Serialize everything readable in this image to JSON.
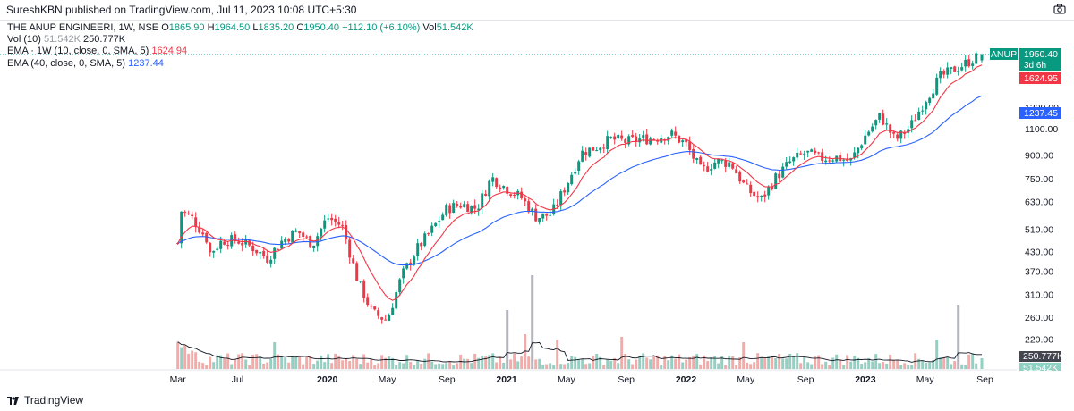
{
  "published": "SureshKBN published on TradingView.com, Jul 11, 2023 10:08 UTC+5:30",
  "legend": {
    "symbol": "THE ANUP ENGINEERI, 1W, NSE",
    "ohlc": [
      {
        "k": "O",
        "v": "1865.90"
      },
      {
        "k": "H",
        "v": "1964.50"
      },
      {
        "k": "L",
        "v": "1835.20"
      },
      {
        "k": "C",
        "v": "1950.40"
      }
    ],
    "change": "+112.10 (+6.10%)",
    "vol_key": "Vol",
    "vol_value": "51.542K",
    "vol_ind_label": "Vol (10)",
    "vol_ind_v1": "51.542K",
    "vol_ind_v2": "250.777K",
    "ema1_label": "EMA · 1W (10, close, 0, SMA, 5)",
    "ema1_value": "1624.94",
    "ema2_label": "EMA (40, close, 0, SMA, 5)",
    "ema2_value": "1237.44"
  },
  "price_axis": {
    "ticks": [
      "1950.00",
      "1300.00",
      "1100.00",
      "900.00",
      "750.00",
      "630.00",
      "510.00",
      "430.00",
      "370.00",
      "310.00",
      "260.00",
      "220.00"
    ]
  },
  "time_axis": {
    "ticks": [
      "Mar",
      "Jul",
      "2020",
      "May",
      "Sep",
      "2021",
      "May",
      "Sep",
      "2022",
      "May",
      "Sep",
      "2023",
      "May",
      "Sep"
    ]
  },
  "badges": {
    "symbol": "ANUP",
    "price": "1950.40",
    "countdown": "3d 6h",
    "ema10": "1624.95",
    "ema40": "1237.45",
    "vol_ma": "250.777K",
    "vol": "51.542K"
  },
  "colors": {
    "up": "#089981",
    "down": "#f23645",
    "ema10": "#f23645",
    "ema40": "#2962ff",
    "vol_up": "#8fd1c3",
    "vol_down": "#f7a9a7",
    "vol_spike": "#b2b5be",
    "vol_ma": "#131722"
  },
  "footer": {
    "brand": "TradingView"
  },
  "chart_data": {
    "type": "candlestick",
    "symbol": "THE ANUP ENGINEERI",
    "timeframe": "1W",
    "exchange": "NSE",
    "y_scale": "log",
    "x_range": [
      "2019-03",
      "2023-07"
    ],
    "last_bar": {
      "open": 1865.9,
      "high": 1964.5,
      "low": 1835.2,
      "close": 1950.4,
      "change": 112.1,
      "change_pct": 6.1,
      "volume": "51.542K"
    },
    "indicators": [
      {
        "name": "EMA 10",
        "last": 1624.94
      },
      {
        "name": "EMA 40",
        "last": 1237.44
      },
      {
        "name": "Vol MA 10",
        "last": "250.777K"
      }
    ],
    "price_path": [
      [
        "2019-03",
        460
      ],
      [
        "2019-03",
        600
      ],
      [
        "2019-04",
        555
      ],
      [
        "2019-05",
        470
      ],
      [
        "2019-05",
        420
      ],
      [
        "2019-06",
        470
      ],
      [
        "2019-07",
        470
      ],
      [
        "2019-08",
        445
      ],
      [
        "2019-09",
        410
      ],
      [
        "2019-10",
        470
      ],
      [
        "2019-11",
        505
      ],
      [
        "2019-12",
        455
      ],
      [
        "2020-01",
        560
      ],
      [
        "2020-02",
        525
      ],
      [
        "2020-03",
        350
      ],
      [
        "2020-04",
        270
      ],
      [
        "2020-05",
        255
      ],
      [
        "2020-06",
        360
      ],
      [
        "2020-07",
        440
      ],
      [
        "2020-08",
        510
      ],
      [
        "2020-09",
        600
      ],
      [
        "2020-10",
        620
      ],
      [
        "2020-11",
        600
      ],
      [
        "2020-12",
        760
      ],
      [
        "2021-01",
        700
      ],
      [
        "2021-02",
        650
      ],
      [
        "2021-03",
        560
      ],
      [
        "2021-04",
        575
      ],
      [
        "2021-05",
        720
      ],
      [
        "2021-06",
        920
      ],
      [
        "2021-07",
        960
      ],
      [
        "2021-08",
        1020
      ],
      [
        "2021-09",
        1000
      ],
      [
        "2021-10",
        1020
      ],
      [
        "2021-11",
        1030
      ],
      [
        "2021-12",
        1060
      ],
      [
        "2022-01",
        980
      ],
      [
        "2022-02",
        800
      ],
      [
        "2022-03",
        860
      ],
      [
        "2022-04",
        850
      ],
      [
        "2022-05",
        700
      ],
      [
        "2022-06",
        640
      ],
      [
        "2022-07",
        760
      ],
      [
        "2022-08",
        860
      ],
      [
        "2022-09",
        920
      ],
      [
        "2022-10",
        880
      ],
      [
        "2022-11",
        890
      ],
      [
        "2022-12",
        860
      ],
      [
        "2023-01",
        1050
      ],
      [
        "2023-02",
        1220
      ],
      [
        "2023-03",
        1010
      ],
      [
        "2023-04",
        1120
      ],
      [
        "2023-05",
        1380
      ],
      [
        "2023-06",
        1640
      ],
      [
        "2023-07",
        1950
      ]
    ]
  }
}
